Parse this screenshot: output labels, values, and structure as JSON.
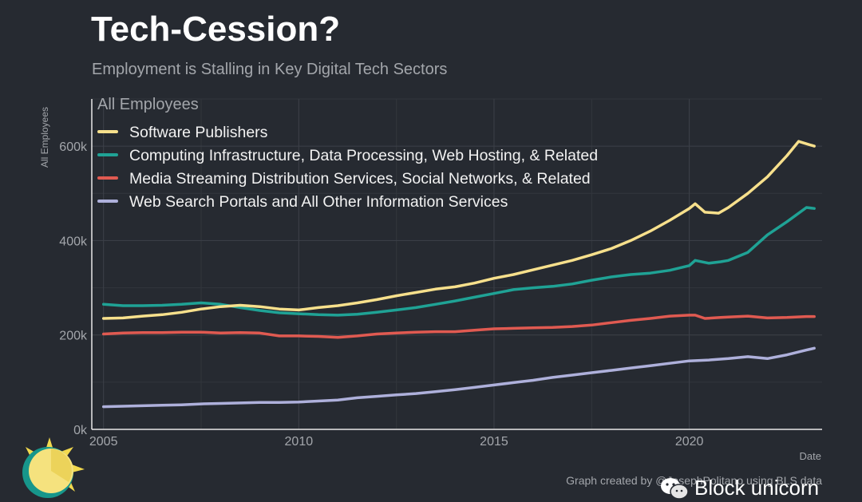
{
  "title": "Tech-Cession?",
  "subtitle": "Employment is Stalling in Key Digital Tech Sectors",
  "credit": "Graph created by @JosephPolitano using BLS data",
  "watermark": "Block unicorn",
  "colors": {
    "background": "#262a31",
    "grid": "#3d4149",
    "text": "#a3a6ab"
  },
  "logo_icon": "sun-logo-icon",
  "chart_data": {
    "type": "line",
    "title": "All Employees",
    "xlabel": "Date",
    "ylabel": "All Employees",
    "xlim": [
      2004.7,
      2023.4
    ],
    "ylim": [
      0,
      700000
    ],
    "xticks": [
      2005,
      2010,
      2015,
      2020
    ],
    "xtick_labels": [
      "2005",
      "2010",
      "2015",
      "2020"
    ],
    "yticks": [
      0,
      200000,
      400000,
      600000
    ],
    "ytick_labels": [
      "0k",
      "200k",
      "400k",
      "600k"
    ],
    "grid": true,
    "legend_position": "top-left",
    "series": [
      {
        "name": "Software Publishers",
        "color": "#f7e08c",
        "points": [
          [
            2005,
            235000
          ],
          [
            2005.5,
            236000
          ],
          [
            2006,
            240000
          ],
          [
            2006.5,
            243000
          ],
          [
            2007,
            248000
          ],
          [
            2007.5,
            255000
          ],
          [
            2008,
            260000
          ],
          [
            2008.5,
            263000
          ],
          [
            2009,
            260000
          ],
          [
            2009.5,
            255000
          ],
          [
            2010,
            253000
          ],
          [
            2010.5,
            258000
          ],
          [
            2011,
            262000
          ],
          [
            2011.5,
            268000
          ],
          [
            2012,
            275000
          ],
          [
            2012.5,
            283000
          ],
          [
            2013,
            290000
          ],
          [
            2013.5,
            297000
          ],
          [
            2014,
            302000
          ],
          [
            2014.5,
            310000
          ],
          [
            2015,
            320000
          ],
          [
            2015.5,
            328000
          ],
          [
            2016,
            338000
          ],
          [
            2016.5,
            348000
          ],
          [
            2017,
            358000
          ],
          [
            2017.5,
            370000
          ],
          [
            2018,
            383000
          ],
          [
            2018.5,
            400000
          ],
          [
            2019,
            420000
          ],
          [
            2019.5,
            443000
          ],
          [
            2020,
            468000
          ],
          [
            2020.15,
            478000
          ],
          [
            2020.4,
            460000
          ],
          [
            2020.75,
            458000
          ],
          [
            2021,
            470000
          ],
          [
            2021.5,
            500000
          ],
          [
            2022,
            535000
          ],
          [
            2022.5,
            580000
          ],
          [
            2022.8,
            610000
          ],
          [
            2023,
            605000
          ],
          [
            2023.2,
            600000
          ]
        ]
      },
      {
        "name": "Computing Infrastructure, Data Processing, Web Hosting, & Related",
        "color": "#1fa295",
        "points": [
          [
            2005,
            265000
          ],
          [
            2005.5,
            262000
          ],
          [
            2006,
            262000
          ],
          [
            2006.5,
            263000
          ],
          [
            2007,
            265000
          ],
          [
            2007.5,
            268000
          ],
          [
            2008,
            265000
          ],
          [
            2008.5,
            258000
          ],
          [
            2009,
            252000
          ],
          [
            2009.5,
            247000
          ],
          [
            2010,
            245000
          ],
          [
            2010.5,
            243000
          ],
          [
            2011,
            242000
          ],
          [
            2011.5,
            244000
          ],
          [
            2012,
            248000
          ],
          [
            2012.5,
            253000
          ],
          [
            2013,
            258000
          ],
          [
            2013.5,
            265000
          ],
          [
            2014,
            272000
          ],
          [
            2014.5,
            280000
          ],
          [
            2015,
            288000
          ],
          [
            2015.5,
            296000
          ],
          [
            2016,
            300000
          ],
          [
            2016.5,
            303000
          ],
          [
            2017,
            308000
          ],
          [
            2017.5,
            316000
          ],
          [
            2018,
            323000
          ],
          [
            2018.5,
            328000
          ],
          [
            2019,
            331000
          ],
          [
            2019.5,
            337000
          ],
          [
            2020,
            347000
          ],
          [
            2020.15,
            358000
          ],
          [
            2020.5,
            352000
          ],
          [
            2020.8,
            355000
          ],
          [
            2021,
            358000
          ],
          [
            2021.5,
            375000
          ],
          [
            2022,
            412000
          ],
          [
            2022.5,
            440000
          ],
          [
            2023,
            470000
          ],
          [
            2023.2,
            468000
          ]
        ]
      },
      {
        "name": "Media Streaming Distribution Services, Social Networks, & Related",
        "color": "#e05a51",
        "points": [
          [
            2005,
            202000
          ],
          [
            2005.5,
            204000
          ],
          [
            2006,
            205000
          ],
          [
            2006.5,
            205000
          ],
          [
            2007,
            206000
          ],
          [
            2007.5,
            206000
          ],
          [
            2008,
            204000
          ],
          [
            2008.5,
            205000
          ],
          [
            2009,
            204000
          ],
          [
            2009.5,
            198000
          ],
          [
            2010,
            198000
          ],
          [
            2010.5,
            197000
          ],
          [
            2011,
            195000
          ],
          [
            2011.5,
            198000
          ],
          [
            2012,
            202000
          ],
          [
            2012.5,
            204000
          ],
          [
            2013,
            206000
          ],
          [
            2013.5,
            207000
          ],
          [
            2014,
            207000
          ],
          [
            2014.5,
            210000
          ],
          [
            2015,
            213000
          ],
          [
            2015.5,
            214000
          ],
          [
            2016,
            215000
          ],
          [
            2016.5,
            216000
          ],
          [
            2017,
            218000
          ],
          [
            2017.5,
            221000
          ],
          [
            2018,
            226000
          ],
          [
            2018.5,
            231000
          ],
          [
            2019,
            235000
          ],
          [
            2019.5,
            240000
          ],
          [
            2020,
            242000
          ],
          [
            2020.15,
            242000
          ],
          [
            2020.4,
            235000
          ],
          [
            2020.8,
            237000
          ],
          [
            2021,
            238000
          ],
          [
            2021.5,
            240000
          ],
          [
            2022,
            236000
          ],
          [
            2022.5,
            237000
          ],
          [
            2023,
            239000
          ],
          [
            2023.2,
            239000
          ]
        ]
      },
      {
        "name": "Web Search Portals and All Other Information Services",
        "color": "#aeb0db",
        "points": [
          [
            2005,
            48000
          ],
          [
            2005.5,
            49000
          ],
          [
            2006,
            50000
          ],
          [
            2006.5,
            51000
          ],
          [
            2007,
            52000
          ],
          [
            2007.5,
            54000
          ],
          [
            2008,
            55000
          ],
          [
            2008.5,
            56000
          ],
          [
            2009,
            57000
          ],
          [
            2009.5,
            57000
          ],
          [
            2010,
            58000
          ],
          [
            2010.5,
            60000
          ],
          [
            2011,
            62000
          ],
          [
            2011.5,
            67000
          ],
          [
            2012,
            70000
          ],
          [
            2012.5,
            73000
          ],
          [
            2013,
            76000
          ],
          [
            2013.5,
            80000
          ],
          [
            2014,
            84000
          ],
          [
            2014.5,
            89000
          ],
          [
            2015,
            94000
          ],
          [
            2015.5,
            99000
          ],
          [
            2016,
            104000
          ],
          [
            2016.5,
            110000
          ],
          [
            2017,
            115000
          ],
          [
            2017.5,
            120000
          ],
          [
            2018,
            125000
          ],
          [
            2018.5,
            130000
          ],
          [
            2019,
            135000
          ],
          [
            2019.5,
            140000
          ],
          [
            2020,
            145000
          ],
          [
            2020.5,
            147000
          ],
          [
            2021,
            150000
          ],
          [
            2021.5,
            154000
          ],
          [
            2022,
            150000
          ],
          [
            2022.5,
            158000
          ],
          [
            2023,
            168000
          ],
          [
            2023.2,
            172000
          ]
        ]
      }
    ]
  }
}
